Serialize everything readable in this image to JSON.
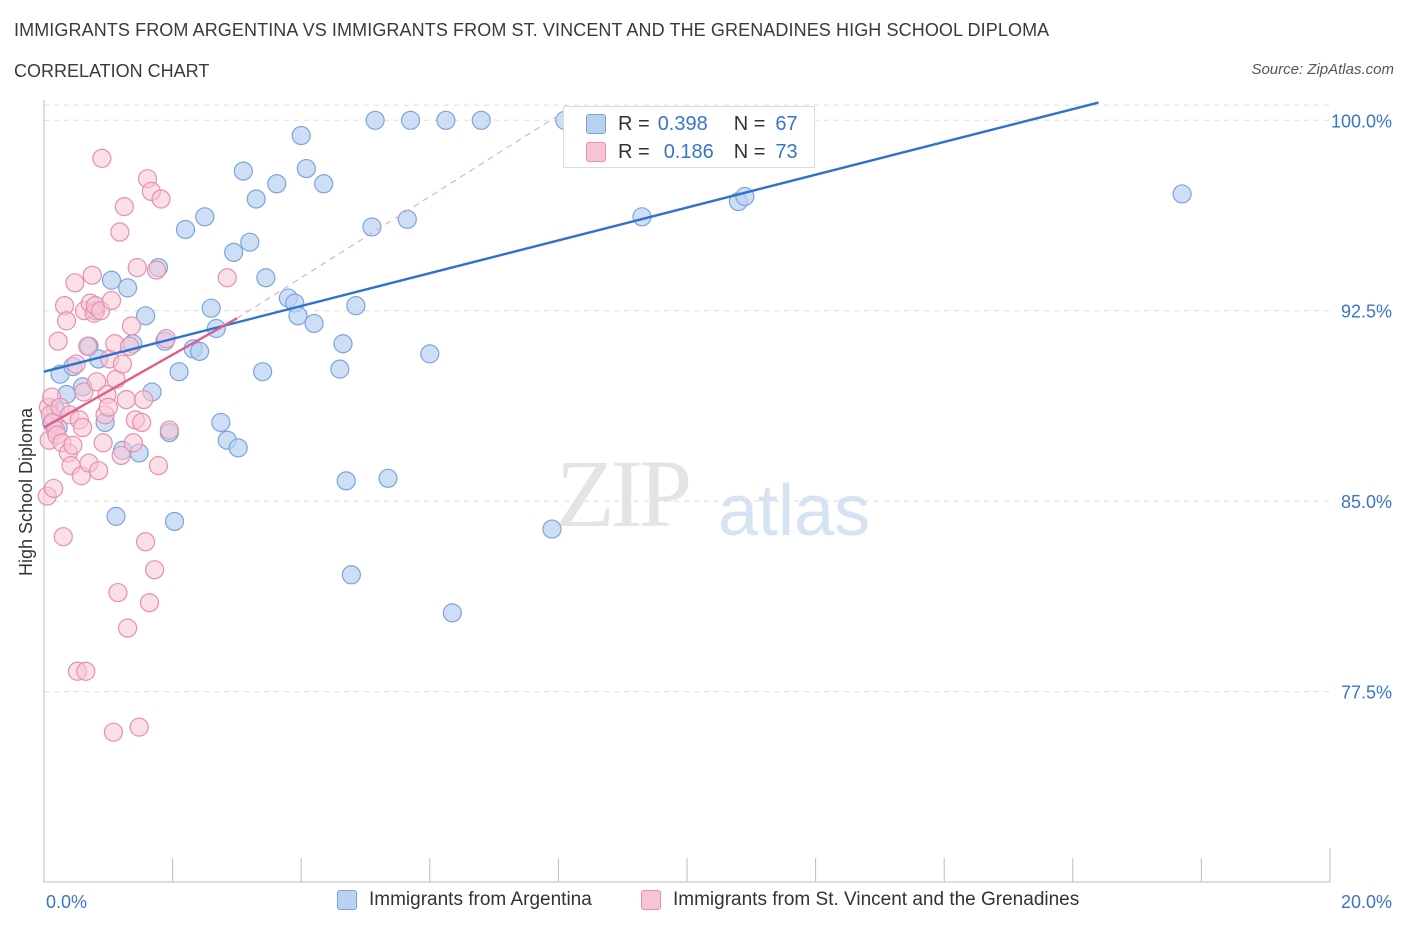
{
  "title": "IMMIGRANTS FROM ARGENTINA VS IMMIGRANTS FROM ST. VINCENT AND THE GRENADINES HIGH SCHOOL DIPLOMA",
  "subtitle": "CORRELATION CHART",
  "source": "Source: ZipAtlas.com",
  "watermark": {
    "zip": "ZIP",
    "atlas": "atlas"
  },
  "stats": [
    {
      "r_label": "R =",
      "r_value": "0.398",
      "n_label": "N =",
      "n_value": "67"
    },
    {
      "r_label": "R =",
      "r_value": "0.186",
      "n_label": "N =",
      "n_value": "73"
    }
  ],
  "colors": {
    "argentina_fill": "#b9d2f1",
    "argentina_stroke": "#7aa5dc",
    "argentina_line": "#2f72cd",
    "stvincent_fill": "#f7c4d4",
    "stvincent_stroke": "#e88fae",
    "stvincent_line": "#e05e8c",
    "axis_text": "#3a74c9",
    "grid": "#dcdcdc"
  },
  "chart_data": {
    "type": "scatter",
    "title": "IMMIGRANTS FROM ARGENTINA VS IMMIGRANTS FROM ST. VINCENT AND THE GRENADINES HIGH SCHOOL DIPLOMA",
    "xlabel": "",
    "ylabel": "High School Diploma",
    "xlim": [
      0,
      20
    ],
    "ylim": [
      70.0,
      100.8
    ],
    "x_tick_labels": [
      "0.0%",
      "20.0%"
    ],
    "y_ticks": [
      77.5,
      85.0,
      92.5,
      100.0
    ],
    "y_tick_labels": [
      "77.5%",
      "85.0%",
      "92.5%",
      "100.0%"
    ],
    "grid": true,
    "legend_position": "bottom",
    "series": [
      {
        "name": "Immigrants from Argentina",
        "trendline": {
          "x": [
            0.0,
            16.4
          ],
          "y": [
            90.1,
            100.7
          ]
        },
        "points": [
          {
            "x": 0.12,
            "y": 88.1
          },
          {
            "x": 0.18,
            "y": 88.6
          },
          {
            "x": 0.22,
            "y": 87.9
          },
          {
            "x": 0.25,
            "y": 90.0
          },
          {
            "x": 0.35,
            "y": 89.2
          },
          {
            "x": 0.45,
            "y": 90.3
          },
          {
            "x": 0.6,
            "y": 89.5
          },
          {
            "x": 0.7,
            "y": 91.1
          },
          {
            "x": 0.8,
            "y": 92.5
          },
          {
            "x": 0.85,
            "y": 90.6
          },
          {
            "x": 0.95,
            "y": 88.1
          },
          {
            "x": 1.05,
            "y": 93.7
          },
          {
            "x": 1.12,
            "y": 84.4
          },
          {
            "x": 1.22,
            "y": 87.0
          },
          {
            "x": 1.3,
            "y": 93.4
          },
          {
            "x": 1.38,
            "y": 91.2
          },
          {
            "x": 1.48,
            "y": 86.9
          },
          {
            "x": 1.58,
            "y": 92.3
          },
          {
            "x": 1.68,
            "y": 89.3
          },
          {
            "x": 1.78,
            "y": 94.2
          },
          {
            "x": 1.88,
            "y": 91.3
          },
          {
            "x": 1.95,
            "y": 87.7
          },
          {
            "x": 2.03,
            "y": 84.2
          },
          {
            "x": 2.1,
            "y": 90.1
          },
          {
            "x": 2.2,
            "y": 95.7
          },
          {
            "x": 2.32,
            "y": 91.0
          },
          {
            "x": 2.42,
            "y": 90.9
          },
          {
            "x": 2.5,
            "y": 96.2
          },
          {
            "x": 2.6,
            "y": 92.6
          },
          {
            "x": 2.68,
            "y": 91.8
          },
          {
            "x": 2.75,
            "y": 88.1
          },
          {
            "x": 2.85,
            "y": 87.4
          },
          {
            "x": 2.95,
            "y": 94.8
          },
          {
            "x": 3.02,
            "y": 87.1
          },
          {
            "x": 3.1,
            "y": 98.0
          },
          {
            "x": 3.2,
            "y": 95.2
          },
          {
            "x": 3.3,
            "y": 96.9
          },
          {
            "x": 3.4,
            "y": 90.1
          },
          {
            "x": 3.45,
            "y": 93.8
          },
          {
            "x": 3.62,
            "y": 97.5
          },
          {
            "x": 3.8,
            "y": 93.0
          },
          {
            "x": 3.9,
            "y": 92.8
          },
          {
            "x": 3.95,
            "y": 92.3
          },
          {
            "x": 4.0,
            "y": 99.4
          },
          {
            "x": 4.08,
            "y": 98.1
          },
          {
            "x": 4.2,
            "y": 92.0
          },
          {
            "x": 4.35,
            "y": 97.5
          },
          {
            "x": 4.6,
            "y": 90.2
          },
          {
            "x": 4.65,
            "y": 91.2
          },
          {
            "x": 4.7,
            "y": 85.8
          },
          {
            "x": 4.78,
            "y": 82.1
          },
          {
            "x": 4.85,
            "y": 92.7
          },
          {
            "x": 5.1,
            "y": 95.8
          },
          {
            "x": 5.15,
            "y": 100.0
          },
          {
            "x": 5.35,
            "y": 85.9
          },
          {
            "x": 5.65,
            "y": 96.1
          },
          {
            "x": 5.7,
            "y": 100.0
          },
          {
            "x": 6.0,
            "y": 90.8
          },
          {
            "x": 6.25,
            "y": 100.0
          },
          {
            "x": 6.35,
            "y": 80.6
          },
          {
            "x": 6.8,
            "y": 100.0
          },
          {
            "x": 7.9,
            "y": 83.9
          },
          {
            "x": 8.1,
            "y": 100.0
          },
          {
            "x": 9.3,
            "y": 96.2
          },
          {
            "x": 10.8,
            "y": 96.8
          },
          {
            "x": 10.9,
            "y": 97.0
          },
          {
            "x": 17.7,
            "y": 97.1
          }
        ]
      },
      {
        "name": "Immigrants from St. Vincent and the Grenadines",
        "trendline": {
          "x": [
            0.0,
            3.0
          ],
          "y": [
            87.9,
            92.2
          ]
        },
        "trendline_extension": {
          "x": [
            3.0,
            8.0
          ],
          "y": [
            92.2,
            100.2
          ]
        },
        "points": [
          {
            "x": 0.05,
            "y": 85.2
          },
          {
            "x": 0.07,
            "y": 88.7
          },
          {
            "x": 0.08,
            "y": 87.4
          },
          {
            "x": 0.1,
            "y": 88.4
          },
          {
            "x": 0.12,
            "y": 89.1
          },
          {
            "x": 0.14,
            "y": 88.1
          },
          {
            "x": 0.15,
            "y": 85.5
          },
          {
            "x": 0.18,
            "y": 87.8
          },
          {
            "x": 0.2,
            "y": 87.6
          },
          {
            "x": 0.22,
            "y": 91.3
          },
          {
            "x": 0.25,
            "y": 88.7
          },
          {
            "x": 0.28,
            "y": 87.3
          },
          {
            "x": 0.3,
            "y": 83.6
          },
          {
            "x": 0.32,
            "y": 92.7
          },
          {
            "x": 0.35,
            "y": 92.1
          },
          {
            "x": 0.38,
            "y": 86.9
          },
          {
            "x": 0.4,
            "y": 88.4
          },
          {
            "x": 0.42,
            "y": 86.4
          },
          {
            "x": 0.45,
            "y": 87.2
          },
          {
            "x": 0.48,
            "y": 93.6
          },
          {
            "x": 0.5,
            "y": 90.4
          },
          {
            "x": 0.52,
            "y": 78.3
          },
          {
            "x": 0.55,
            "y": 88.2
          },
          {
            "x": 0.58,
            "y": 86.0
          },
          {
            "x": 0.6,
            "y": 87.9
          },
          {
            "x": 0.62,
            "y": 89.3
          },
          {
            "x": 0.63,
            "y": 92.5
          },
          {
            "x": 0.65,
            "y": 78.3
          },
          {
            "x": 0.68,
            "y": 91.1
          },
          {
            "x": 0.7,
            "y": 86.5
          },
          {
            "x": 0.72,
            "y": 92.8
          },
          {
            "x": 0.75,
            "y": 93.9
          },
          {
            "x": 0.78,
            "y": 92.4
          },
          {
            "x": 0.8,
            "y": 92.7
          },
          {
            "x": 0.82,
            "y": 89.7
          },
          {
            "x": 0.85,
            "y": 86.2
          },
          {
            "x": 0.88,
            "y": 92.5
          },
          {
            "x": 0.9,
            "y": 98.5
          },
          {
            "x": 0.92,
            "y": 87.3
          },
          {
            "x": 0.95,
            "y": 88.4
          },
          {
            "x": 0.98,
            "y": 89.2
          },
          {
            "x": 1.0,
            "y": 88.7
          },
          {
            "x": 1.02,
            "y": 90.6
          },
          {
            "x": 1.05,
            "y": 92.9
          },
          {
            "x": 1.08,
            "y": 75.9
          },
          {
            "x": 1.1,
            "y": 91.2
          },
          {
            "x": 1.12,
            "y": 89.8
          },
          {
            "x": 1.15,
            "y": 81.4
          },
          {
            "x": 1.18,
            "y": 95.6
          },
          {
            "x": 1.2,
            "y": 86.8
          },
          {
            "x": 1.22,
            "y": 90.4
          },
          {
            "x": 1.25,
            "y": 96.6
          },
          {
            "x": 1.28,
            "y": 89.0
          },
          {
            "x": 1.3,
            "y": 80.0
          },
          {
            "x": 1.33,
            "y": 91.1
          },
          {
            "x": 1.36,
            "y": 91.9
          },
          {
            "x": 1.39,
            "y": 87.3
          },
          {
            "x": 1.42,
            "y": 88.2
          },
          {
            "x": 1.45,
            "y": 94.2
          },
          {
            "x": 1.48,
            "y": 76.1
          },
          {
            "x": 1.52,
            "y": 88.1
          },
          {
            "x": 1.55,
            "y": 89.0
          },
          {
            "x": 1.58,
            "y": 83.4
          },
          {
            "x": 1.61,
            "y": 97.7
          },
          {
            "x": 1.64,
            "y": 81.0
          },
          {
            "x": 1.67,
            "y": 97.2
          },
          {
            "x": 1.72,
            "y": 82.3
          },
          {
            "x": 1.75,
            "y": 94.1
          },
          {
            "x": 1.78,
            "y": 86.4
          },
          {
            "x": 1.82,
            "y": 96.9
          },
          {
            "x": 1.9,
            "y": 91.4
          },
          {
            "x": 1.95,
            "y": 87.8
          },
          {
            "x": 2.85,
            "y": 93.8
          }
        ]
      }
    ]
  },
  "legend": [
    {
      "label": "Immigrants from Argentina"
    },
    {
      "label": "Immigrants from St. Vincent and the Grenadines"
    }
  ]
}
